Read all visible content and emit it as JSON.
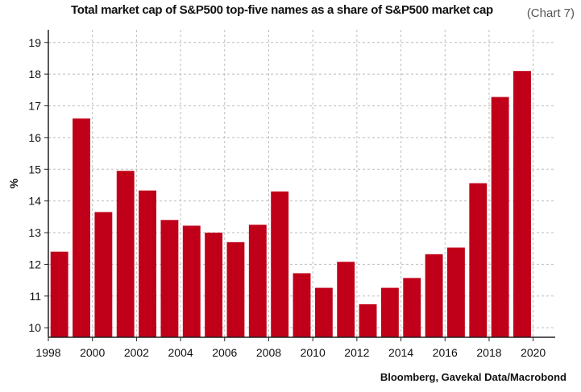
{
  "chart_number": "(Chart 7)",
  "source": "Bloomberg, Gavekal Data/Macrobond",
  "colors": {
    "bar": "#c00018",
    "grid": "#bdbdbd",
    "axis": "#222222"
  },
  "chart_data": {
    "type": "bar",
    "title": "Total market cap of S&P500 top-five names as a share of S&P500 market cap",
    "xlabel": "",
    "ylabel": "%",
    "x": [
      1998.5,
      1999.5,
      2000.5,
      2001.5,
      2002.5,
      2003.5,
      2004.5,
      2005.5,
      2006.5,
      2007.5,
      2008.5,
      2009.5,
      2010.5,
      2011.5,
      2012.5,
      2013.5,
      2014.5,
      2015.5,
      2016.5,
      2017.5,
      2018.5,
      2019.5
    ],
    "values": [
      12.4,
      16.6,
      13.65,
      14.95,
      14.33,
      13.4,
      13.22,
      13.0,
      12.7,
      13.25,
      14.3,
      11.72,
      11.26,
      12.08,
      10.74,
      11.26,
      11.57,
      12.32,
      12.53,
      14.56,
      17.28,
      18.1
    ],
    "xlim": [
      1998,
      2021
    ],
    "ylim": [
      9.7,
      19.4
    ],
    "xticks": [
      "1998",
      "2000",
      "2002",
      "2004",
      "2006",
      "2008",
      "2010",
      "2012",
      "2014",
      "2016",
      "2018",
      "2020"
    ],
    "yticks": [
      "10",
      "11",
      "12",
      "13",
      "14",
      "15",
      "16",
      "17",
      "18",
      "19"
    ],
    "grid": true,
    "legend": "none"
  }
}
